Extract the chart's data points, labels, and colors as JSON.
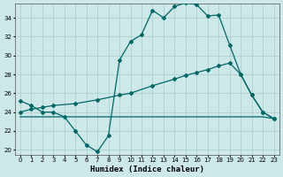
{
  "xlabel": "Humidex (Indice chaleur)",
  "background_color": "#cce8e8",
  "grid_color": "#aacccc",
  "line_color": "#006666",
  "xlim": [
    -0.5,
    23.5
  ],
  "ylim": [
    19.5,
    35.5
  ],
  "xticks": [
    0,
    1,
    2,
    3,
    4,
    5,
    6,
    7,
    8,
    9,
    10,
    11,
    12,
    13,
    14,
    15,
    16,
    17,
    18,
    19,
    20,
    21,
    22,
    23
  ],
  "yticks": [
    20,
    22,
    24,
    26,
    28,
    30,
    32,
    34
  ],
  "series1_x": [
    0,
    1,
    2,
    3,
    4,
    5,
    6,
    7,
    8,
    9,
    10,
    11,
    12,
    13,
    14,
    15,
    16,
    17,
    18,
    19,
    20,
    21,
    22,
    23
  ],
  "series1_y": [
    25.2,
    24.7,
    24.0,
    24.0,
    23.5,
    22.0,
    20.5,
    19.8,
    21.5,
    29.5,
    31.5,
    32.2,
    34.8,
    34.0,
    35.2,
    35.6,
    35.4,
    34.2,
    34.3,
    31.1,
    28.0,
    25.8,
    24.0,
    23.3
  ],
  "series2_x": [
    0,
    1,
    2,
    3,
    5,
    7,
    9,
    10,
    12,
    14,
    15,
    16,
    17,
    18,
    19,
    20,
    21,
    22,
    23
  ],
  "series2_y": [
    24.0,
    24.3,
    24.5,
    24.7,
    24.9,
    25.3,
    25.8,
    26.0,
    26.8,
    27.5,
    27.9,
    28.2,
    28.5,
    28.9,
    29.2,
    28.0,
    25.8,
    24.0,
    23.3
  ],
  "series3_x": [
    0,
    2,
    3,
    9,
    10,
    11,
    12,
    13,
    14,
    15,
    16,
    17,
    18,
    19,
    20,
    21,
    22,
    23
  ],
  "series3_y": [
    23.5,
    23.5,
    23.5,
    23.5,
    23.5,
    23.5,
    23.5,
    23.5,
    23.5,
    23.5,
    23.5,
    23.5,
    23.5,
    23.5,
    23.5,
    23.5,
    23.5,
    23.3
  ]
}
